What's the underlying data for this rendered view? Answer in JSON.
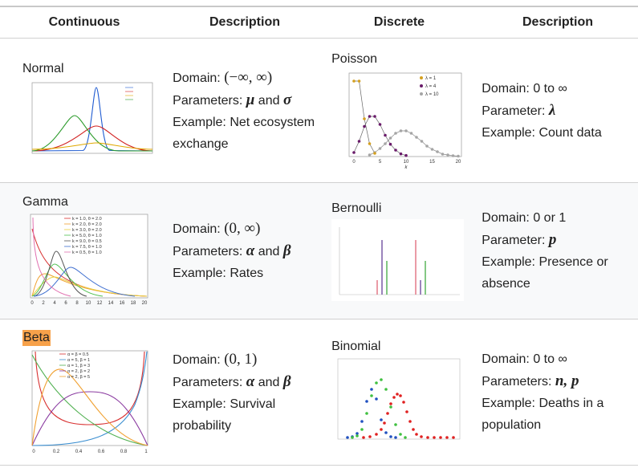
{
  "header": [
    "Continuous",
    "Description",
    "Discrete",
    "Description"
  ],
  "rows": [
    {
      "continuous": {
        "name": "Normal"
      },
      "continuous_description": [
        [
          {
            "text": "Domain: "
          },
          {
            "text": "(−∞, ∞)",
            "style": "expr"
          }
        ],
        [
          {
            "text": "Parameters: "
          },
          {
            "text": "μ",
            "style": "var"
          },
          {
            "text": " and "
          },
          {
            "text": "σ",
            "style": "var"
          }
        ],
        [
          {
            "text": "Example: Net ecosystem exchange"
          }
        ]
      ],
      "discrete": {
        "name": "Poisson",
        "legend": [
          "λ = 1",
          "λ = 4",
          "λ = 10"
        ],
        "x_ticks": [
          "0",
          "5",
          "10",
          "15",
          "20"
        ],
        "x_label": "k"
      },
      "discrete_description": [
        [
          {
            "text": "Domain: 0 to ∞"
          }
        ],
        [
          {
            "text": "Parameter: "
          },
          {
            "text": "λ",
            "style": "var"
          }
        ],
        [
          {
            "text": "Example: Count data"
          }
        ]
      ]
    },
    {
      "continuous": {
        "name": "Gamma",
        "legend": [
          "k = 1.0, θ = 2.0",
          "k = 2.0, θ = 2.0",
          "k = 3.0, θ = 2.0",
          "k = 5.0, θ = 1.0",
          "k = 9.0, θ = 0.5",
          "k = 7.5, θ = 1.0",
          "k = 0.5, θ = 1.0"
        ],
        "x_ticks": [
          "0",
          "2",
          "4",
          "6",
          "8",
          "10",
          "12",
          "14",
          "16",
          "18",
          "20"
        ]
      },
      "continuous_description": [
        [
          {
            "text": "Domain: "
          },
          {
            "text": "(0, ∞)",
            "style": "expr"
          }
        ],
        [
          {
            "text": "Parameters: "
          },
          {
            "text": "α",
            "style": "var"
          },
          {
            "text": " and "
          },
          {
            "text": "β",
            "style": "var"
          }
        ],
        [
          {
            "text": "Example: Rates"
          }
        ]
      ],
      "discrete": {
        "name": "Bernoulli"
      },
      "discrete_description": [
        [
          {
            "text": "Domain: 0 or 1"
          }
        ],
        [
          {
            "text": "Parameter: "
          },
          {
            "text": "p",
            "style": "var"
          }
        ],
        [
          {
            "text": "Example: Presence or absence"
          }
        ]
      ]
    },
    {
      "continuous": {
        "name": "Beta",
        "legend": [
          "α = β = 0.5",
          "α = 5, β = 1",
          "α = 1, β = 3",
          "α = 2, β = 2",
          "α = 2, β = 5"
        ],
        "x_ticks": [
          "0",
          "0.2",
          "0.4",
          "0.6",
          "0.8",
          "1"
        ]
      },
      "continuous_description": [
        [
          {
            "text": "Domain: "
          },
          {
            "text": "(0, 1)",
            "style": "expr"
          }
        ],
        [
          {
            "text": "Parameters: "
          },
          {
            "text": "α",
            "style": "var"
          },
          {
            "text": " and "
          },
          {
            "text": "β",
            "style": "var"
          }
        ],
        [
          {
            "text": "Example: Survival probability"
          }
        ]
      ],
      "discrete": {
        "name": "Binomial"
      },
      "discrete_description": [
        [
          {
            "text": "Domain: 0 to ∞"
          }
        ],
        [
          {
            "text": "Parameters: "
          },
          {
            "text": "n, p",
            "style": "var"
          }
        ],
        [
          {
            "text": "Example: Deaths in a population"
          }
        ]
      ]
    }
  ]
}
